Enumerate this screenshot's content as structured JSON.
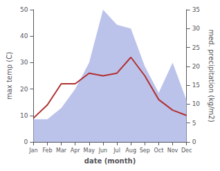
{
  "chart_data": {
    "type": "line",
    "categories": [
      "Jan",
      "Feb",
      "Mar",
      "Apr",
      "May",
      "Jun",
      "Jul",
      "Aug",
      "Sep",
      "Oct",
      "Nov",
      "Dec"
    ],
    "xlabel": "date (month)",
    "ylabel": "max temp (C)",
    "y2label": "med. precipitation (kg/m2)",
    "series": [
      {
        "type": "area",
        "color": "#b0b8e8",
        "axis": "y2",
        "values": [
          6,
          6,
          9,
          14,
          21,
          35,
          31,
          30,
          20,
          13,
          21,
          11
        ]
      },
      {
        "type": "line",
        "color": "#b03030",
        "values": [
          9,
          14,
          22,
          22,
          26,
          25,
          26,
          32,
          25,
          16,
          12,
          10
        ]
      }
    ],
    "ylim": [
      0,
      50
    ],
    "yticks": [
      0,
      10,
      20,
      30,
      40,
      50
    ],
    "y2lim": [
      0,
      35
    ],
    "y2ticks": [
      0,
      5,
      10,
      15,
      20,
      25,
      30,
      35
    ],
    "grid": false
  }
}
